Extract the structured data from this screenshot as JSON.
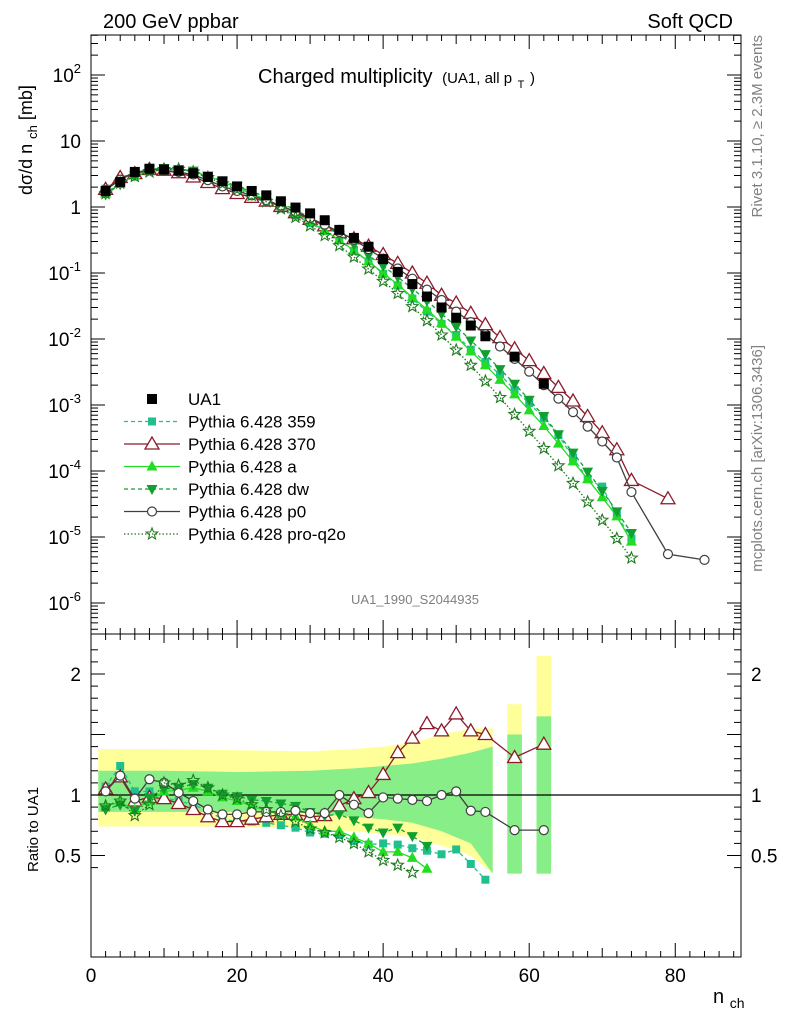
{
  "header": {
    "left": "200 GeV ppbar",
    "right": "Soft QCD"
  },
  "side": {
    "top": "Rivet 3.1.10, ≥ 2.3M events",
    "bottom": "mcplots.cern.ch [arXiv:1306.3436]"
  },
  "plot": {
    "title": "Charged multiplicity",
    "title_small": "(UA1, all p",
    "title_small_sub": "T",
    "title_small_end": ")",
    "watermark": "UA1_1990_S2044935",
    "ylabel_main": "dσ/d n",
    "ylabel_main_sub": "ch",
    "ylabel_main_unit": " [mb]",
    "ylabel_ratio": "Ratio to UA1",
    "xlabel": "n",
    "xlabel_sub": "ch"
  },
  "chart_data": {
    "type": "scatter",
    "panels": [
      "main",
      "ratio"
    ],
    "x_axis": {
      "label": "n_ch",
      "range": [
        0,
        89
      ],
      "ticks": [
        0,
        20,
        40,
        60,
        80
      ]
    },
    "main_axis": {
      "label": "dσ/d n_ch [mb]",
      "scale": "log",
      "range": [
        2.5e-07,
        500
      ],
      "tick_labels": [
        "10^-6",
        "10^-5",
        "10^-4",
        "10^-3",
        "10^-2",
        "10^-1",
        "1",
        "10",
        "10^2"
      ]
    },
    "ratio_axis": {
      "label": "Ratio to UA1",
      "range": [
        0.35,
        2.28
      ],
      "tick_labels": [
        "0.5",
        "1",
        "2"
      ]
    },
    "legend": {
      "placement": "left",
      "entries": [
        "UA1",
        "Pythia 6.428 359",
        "Pythia 6.428 370",
        "Pythia 6.428 a",
        "Pythia 6.428 dw",
        "Pythia 6.428 p0",
        "Pythia 6.428 pro-q2o"
      ]
    },
    "data": {
      "name": "UA1",
      "x": [
        2,
        4,
        6,
        8,
        10,
        12,
        14,
        16,
        18,
        20,
        22,
        24,
        26,
        28,
        30,
        32,
        34,
        36,
        38,
        40,
        42,
        44,
        46,
        48,
        50,
        52,
        54,
        58,
        62
      ],
      "y": [
        1.75,
        2.4,
        3.4,
        3.8,
        3.7,
        3.55,
        3.25,
        2.85,
        2.45,
        2.05,
        1.75,
        1.5,
        1.22,
        0.98,
        0.8,
        0.63,
        0.45,
        0.34,
        0.25,
        0.162,
        0.104,
        0.068,
        0.044,
        0.03,
        0.021,
        0.016,
        0.011,
        0.0054,
        0.0021
      ]
    },
    "series": [
      {
        "name": "Pythia 6.428 359",
        "color": "#1fbf8f",
        "marker": "square",
        "x": [
          2,
          4,
          6,
          8,
          10,
          12,
          14,
          16,
          18,
          20,
          22,
          24,
          26,
          28,
          30,
          32,
          34,
          36,
          38,
          40,
          42,
          44,
          46,
          48,
          50,
          52,
          54,
          56,
          58,
          60,
          62,
          64,
          66,
          68,
          70,
          72,
          74
        ],
        "y": [
          1.9,
          2.6,
          3.4,
          3.9,
          3.6,
          3.3,
          3.0,
          2.5,
          2.0,
          1.65,
          1.4,
          1.18,
          0.95,
          0.74,
          0.57,
          0.43,
          0.315,
          0.215,
          0.15,
          0.097,
          0.065,
          0.041,
          0.026,
          0.017,
          0.0115,
          0.0069,
          0.0045,
          0.0029,
          0.0017,
          0.00107,
          0.00063,
          0.00035,
          0.00016,
          7.5e-05,
          5.8e-05,
          2.15e-05,
          9.5e-06
        ],
        "ratio_x": [
          2,
          4,
          6,
          8,
          10,
          12,
          14,
          16,
          18,
          20,
          22,
          24,
          26,
          28,
          30,
          32,
          34,
          36,
          38,
          40,
          42,
          44,
          46,
          48,
          50,
          52,
          54
        ],
        "ratio_y": [
          1.07,
          1.24,
          1.03,
          1.03,
          0.98,
          0.95,
          0.92,
          0.87,
          0.8,
          0.78,
          0.78,
          0.77,
          0.75,
          0.73,
          0.69,
          0.68,
          0.67,
          0.62,
          0.59,
          0.6,
          0.59,
          0.56,
          0.54,
          0.51,
          0.55,
          0.43,
          0.3
        ]
      },
      {
        "name": "Pythia 6.428 370",
        "color": "#8b1a2a",
        "marker": "open-triangle",
        "x": [
          2,
          4,
          6,
          8,
          10,
          12,
          14,
          16,
          18,
          20,
          22,
          24,
          26,
          28,
          30,
          32,
          34,
          36,
          38,
          40,
          42,
          44,
          46,
          48,
          50,
          52,
          54,
          56,
          58,
          60,
          62,
          64,
          66,
          68,
          70,
          72,
          74,
          79
        ],
        "y": [
          1.85,
          2.8,
          3.2,
          3.7,
          3.6,
          3.3,
          2.85,
          2.35,
          1.9,
          1.6,
          1.4,
          1.23,
          1.02,
          0.82,
          0.65,
          0.52,
          0.41,
          0.33,
          0.255,
          0.19,
          0.14,
          0.1,
          0.07,
          0.046,
          0.035,
          0.0245,
          0.0165,
          0.0105,
          0.0071,
          0.0047,
          0.003,
          0.00185,
          0.00115,
          0.00067,
          0.00038,
          0.00021,
          7.2e-05,
          3.8e-05
        ],
        "ratio_x": [
          2,
          4,
          6,
          8,
          10,
          12,
          14,
          16,
          18,
          20,
          22,
          24,
          26,
          28,
          30,
          32,
          34,
          36,
          38,
          40,
          42,
          44,
          46,
          48,
          50,
          52,
          54,
          58,
          62
        ],
        "ratio_y": [
          1.05,
          1.15,
          0.95,
          0.98,
          0.97,
          0.93,
          0.88,
          0.82,
          0.78,
          0.78,
          0.8,
          0.82,
          0.84,
          0.84,
          0.82,
          0.83,
          0.91,
          0.97,
          1.02,
          1.17,
          1.35,
          1.47,
          1.59,
          1.53,
          1.67,
          1.53,
          1.5,
          1.31,
          1.42
        ]
      },
      {
        "name": "Pythia 6.428 a",
        "color": "#22dd22",
        "marker": "triangle",
        "x": [
          2,
          4,
          6,
          8,
          10,
          12,
          14,
          16,
          18,
          20,
          22,
          24,
          26,
          28,
          30,
          32,
          34,
          36,
          38,
          40,
          42,
          44,
          46,
          48,
          50,
          52,
          54,
          56,
          58,
          60,
          62,
          64,
          66,
          68,
          70,
          72,
          74
        ],
        "y": [
          1.6,
          2.25,
          3.0,
          3.6,
          3.8,
          3.7,
          3.45,
          2.95,
          2.4,
          1.95,
          1.6,
          1.3,
          1.03,
          0.8,
          0.6,
          0.44,
          0.315,
          0.22,
          0.15,
          0.1,
          0.067,
          0.043,
          0.028,
          0.0175,
          0.0108,
          0.0065,
          0.004,
          0.0024,
          0.00145,
          0.00083,
          0.00048,
          0.00026,
          0.00014,
          7.5e-05,
          4e-05,
          2.05e-05,
          8.5e-06
        ],
        "ratio_x": [
          2,
          4,
          6,
          8,
          10,
          12,
          14,
          16,
          18,
          20,
          22,
          24,
          26,
          28,
          30,
          32,
          34,
          36,
          38,
          40,
          42,
          44,
          46
        ],
        "ratio_y": [
          0.91,
          0.94,
          0.88,
          0.95,
          1.03,
          1.04,
          1.06,
          1.03,
          0.98,
          0.95,
          0.91,
          0.87,
          0.84,
          0.82,
          0.75,
          0.7,
          0.7,
          0.65,
          0.6,
          0.53,
          0.53,
          0.48,
          0.39
        ]
      },
      {
        "name": "Pythia 6.428 dw",
        "color": "#10a030",
        "marker": "down-triangle",
        "x": [
          2,
          4,
          6,
          8,
          10,
          12,
          14,
          16,
          18,
          20,
          22,
          24,
          26,
          28,
          30,
          32,
          34,
          36,
          38,
          40,
          42,
          44,
          46,
          48,
          50,
          52,
          54,
          56,
          58,
          60,
          62,
          64,
          66,
          68,
          70,
          72,
          74
        ],
        "y": [
          1.55,
          2.2,
          3.0,
          3.7,
          3.9,
          3.75,
          3.55,
          3.0,
          2.5,
          2.05,
          1.7,
          1.42,
          1.15,
          0.9,
          0.69,
          0.52,
          0.38,
          0.27,
          0.185,
          0.128,
          0.087,
          0.058,
          0.038,
          0.024,
          0.0155,
          0.0095,
          0.0059,
          0.0035,
          0.0021,
          0.0012,
          0.00068,
          0.00036,
          0.00019,
          9.8e-05,
          5e-05,
          2.45e-05,
          1.15e-05
        ],
        "ratio_x": [
          2,
          4,
          6,
          8,
          10,
          12,
          14,
          16,
          18,
          20,
          22,
          24,
          26,
          28,
          30,
          32,
          34,
          36,
          38,
          40,
          42,
          44,
          46
        ],
        "ratio_y": [
          0.88,
          0.92,
          0.87,
          0.98,
          1.05,
          1.06,
          1.09,
          1.06,
          1.01,
          0.99,
          0.96,
          0.95,
          0.93,
          0.91,
          0.86,
          0.83,
          0.84,
          0.79,
          0.73,
          0.69,
          0.73,
          0.66,
          0.58
        ]
      },
      {
        "name": "Pythia 6.428 p0",
        "color": "#404040",
        "marker": "open-circle",
        "x": [
          2,
          4,
          6,
          8,
          10,
          12,
          14,
          16,
          18,
          20,
          22,
          24,
          26,
          28,
          30,
          32,
          34,
          36,
          38,
          40,
          42,
          44,
          46,
          48,
          50,
          52,
          54,
          56,
          58,
          60,
          62,
          64,
          66,
          68,
          70,
          72,
          74,
          79,
          84
        ],
        "y": [
          1.8,
          2.6,
          3.3,
          3.7,
          3.6,
          3.4,
          3.1,
          2.55,
          2.05,
          1.75,
          1.5,
          1.27,
          1.05,
          0.85,
          0.68,
          0.54,
          0.42,
          0.32,
          0.23,
          0.165,
          0.117,
          0.082,
          0.056,
          0.039,
          0.026,
          0.018,
          0.0118,
          0.0077,
          0.005,
          0.0032,
          0.002,
          0.00125,
          0.00078,
          0.00047,
          0.00028,
          0.00016,
          4.8e-05,
          5.5e-06,
          4.5e-06
        ],
        "ratio_x": [
          2,
          4,
          6,
          8,
          10,
          12,
          14,
          16,
          18,
          20,
          22,
          24,
          26,
          28,
          30,
          32,
          34,
          36,
          38,
          40,
          42,
          44,
          46,
          48,
          50,
          52,
          54,
          58,
          62
        ],
        "ratio_y": [
          1.03,
          1.16,
          0.97,
          1.13,
          1.1,
          1.02,
          0.95,
          0.88,
          0.84,
          0.84,
          0.86,
          0.86,
          0.86,
          0.87,
          0.85,
          0.85,
          1.0,
          0.92,
          0.85,
          0.98,
          0.97,
          0.96,
          0.95,
          1.0,
          1.03,
          0.87,
          0.86,
          0.71,
          0.71
        ]
      },
      {
        "name": "Pythia 6.428 pro-q2o",
        "color": "#1e7a1e",
        "marker": "star",
        "x": [
          2,
          4,
          6,
          8,
          10,
          12,
          14,
          16,
          18,
          20,
          22,
          24,
          26,
          28,
          30,
          32,
          34,
          36,
          38,
          40,
          42,
          44,
          46,
          48,
          50,
          52,
          54,
          56,
          58,
          60,
          62,
          64,
          66,
          68,
          70,
          72,
          74
        ],
        "y": [
          1.6,
          2.3,
          2.9,
          3.4,
          3.7,
          3.75,
          3.4,
          2.8,
          2.25,
          1.85,
          1.5,
          1.2,
          0.94,
          0.7,
          0.52,
          0.37,
          0.26,
          0.175,
          0.115,
          0.075,
          0.049,
          0.031,
          0.019,
          0.0115,
          0.0068,
          0.004,
          0.0023,
          0.0013,
          0.00072,
          0.0004,
          0.00022,
          0.00012,
          6.5e-05,
          3.4e-05,
          1.8e-05,
          9.5e-06,
          4.8e-06
        ],
        "ratio_x": [
          2,
          4,
          6,
          8,
          10,
          12,
          14,
          16,
          18,
          20,
          22,
          24,
          26,
          28,
          30,
          32,
          34,
          36,
          38,
          40,
          42,
          44
        ],
        "ratio_y": [
          0.91,
          0.95,
          0.83,
          0.92,
          1.1,
          1.08,
          1.12,
          1.06,
          1.0,
          0.97,
          0.92,
          0.88,
          0.83,
          0.78,
          0.72,
          0.69,
          0.65,
          0.6,
          0.53,
          0.46,
          0.42,
          0.36
        ]
      }
    ]
  }
}
